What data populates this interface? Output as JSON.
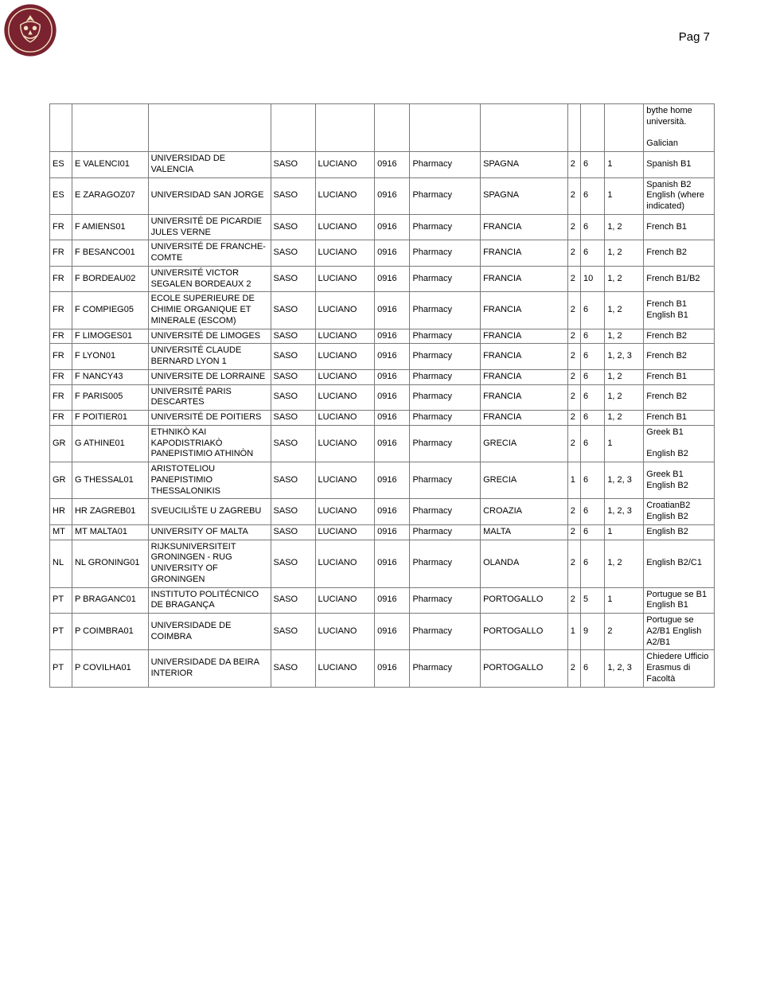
{
  "pageLabel": "Pag 7",
  "spacerNote": "bythe home università.\n\nGalician",
  "columns": [
    "c0",
    "c1",
    "c2",
    "c3",
    "c4",
    "c5",
    "c6",
    "c7",
    "c8",
    "c9",
    "c10",
    "c11"
  ],
  "rows": [
    [
      "ES",
      "E VALENCI01",
      "UNIVERSIDAD DE VALENCIA",
      "SASO",
      "LUCIANO",
      "0916",
      "Pharmacy",
      "SPAGNA",
      "2",
      "6",
      "1",
      "Spanish B1"
    ],
    [
      "ES",
      "E ZARAGOZ07",
      "UNIVERSIDAD SAN JORGE",
      "SASO",
      "LUCIANO",
      "0916",
      "Pharmacy",
      "SPAGNA",
      "2",
      "6",
      "1",
      "Spanish B2 English (where indicated)"
    ],
    [
      "FR",
      "F AMIENS01",
      "UNIVERSITÉ DE PICARDIE JULES VERNE",
      "SASO",
      "LUCIANO",
      "0916",
      "Pharmacy",
      "FRANCIA",
      "2",
      "6",
      "1, 2",
      "French B1"
    ],
    [
      "FR",
      "F BESANCO01",
      "UNIVERSITÉ DE FRANCHE-COMTE",
      "SASO",
      "LUCIANO",
      "0916",
      "Pharmacy",
      "FRANCIA",
      "2",
      "6",
      "1, 2",
      "French B2"
    ],
    [
      "FR",
      "F BORDEAU02",
      "UNIVERSITÉ VICTOR SEGALEN BORDEAUX 2",
      "SASO",
      "LUCIANO",
      "0916",
      "Pharmacy",
      "FRANCIA",
      "2",
      "10",
      "1, 2",
      "French B1/B2"
    ],
    [
      "FR",
      "F COMPIEG05",
      "ECOLE SUPERIEURE DE CHIMIE ORGANIQUE ET MINERALE (ESCOM)",
      "SASO",
      "LUCIANO",
      "0916",
      "Pharmacy",
      "FRANCIA",
      "2",
      "6",
      "1, 2",
      "French B1 English B1"
    ],
    [
      "FR",
      "F LIMOGES01",
      "UNIVERSITÉ DE LIMOGES",
      "SASO",
      "LUCIANO",
      "0916",
      "Pharmacy",
      "FRANCIA",
      "2",
      "6",
      "1, 2",
      "French B2"
    ],
    [
      "FR",
      "F LYON01",
      "UNIVERSITÉ CLAUDE BERNARD LYON 1",
      "SASO",
      "LUCIANO",
      "0916",
      "Pharmacy",
      "FRANCIA",
      "2",
      "6",
      "1, 2, 3",
      "French B2"
    ],
    [
      "FR",
      "F NANCY43",
      "UNIVERSITE DE LORRAINE",
      "SASO",
      "LUCIANO",
      "0916",
      "Pharmacy",
      "FRANCIA",
      "2",
      "6",
      "1, 2",
      "French B1"
    ],
    [
      "FR",
      "F PARIS005",
      "UNIVERSITÉ PARIS DESCARTES",
      "SASO",
      "LUCIANO",
      "0916",
      "Pharmacy",
      "FRANCIA",
      "2",
      "6",
      "1, 2",
      "French B2"
    ],
    [
      "FR",
      "F POITIER01",
      "UNIVERSITÉ DE POITIERS",
      "SASO",
      "LUCIANO",
      "0916",
      "Pharmacy",
      "FRANCIA",
      "2",
      "6",
      "1, 2",
      "French B1"
    ],
    [
      "GR",
      "G ATHINE01",
      "ETHNIKÒ KAI KAPODISTRIAKÒ PANEPISTIMIO ATHINÒN",
      "SASO",
      "LUCIANO",
      "0916",
      "Pharmacy",
      "GRECIA",
      "2",
      "6",
      "1",
      "Greek B1\n\nEnglish B2"
    ],
    [
      "GR",
      "G THESSAL01",
      "ARISTOTELIOU PANEPISTIMIO THESSALONIKIS",
      "SASO",
      "LUCIANO",
      "0916",
      "Pharmacy",
      "GRECIA",
      "1",
      "6",
      "1, 2, 3",
      "Greek B1 English B2"
    ],
    [
      "HR",
      "HR ZAGREB01",
      "SVEUCILIŠTE U ZAGREBU",
      "SASO",
      "LUCIANO",
      "0916",
      "Pharmacy",
      "CROAZIA",
      "2",
      "6",
      "1, 2, 3",
      "CroatianB2 English B2"
    ],
    [
      "MT",
      "MT MALTA01",
      "UNIVERSITY OF MALTA",
      "SASO",
      "LUCIANO",
      "0916",
      "Pharmacy",
      "MALTA",
      "2",
      "6",
      "1",
      "English B2"
    ],
    [
      "NL",
      "NL GRONING01",
      "RIJKSUNIVERSITEIT GRONINGEN - RUG UNIVERSITY OF GRONINGEN",
      "SASO",
      "LUCIANO",
      "0916",
      "Pharmacy",
      "OLANDA",
      "2",
      "6",
      "1, 2",
      "English B2/C1"
    ],
    [
      "PT",
      "P BRAGANC01",
      "INSTITUTO POLITÉCNICO DE BRAGANÇA",
      "SASO",
      "LUCIANO",
      "0916",
      "Pharmacy",
      "PORTOGALLO",
      "2",
      "5",
      "1",
      "Portugue se B1 English B1"
    ],
    [
      "PT",
      "P COIMBRA01",
      "UNIVERSIDADE DE COIMBRA",
      "SASO",
      "LUCIANO",
      "0916",
      "Pharmacy",
      "PORTOGALLO",
      "1",
      "9",
      "2",
      "Portugue se  A2/B1 English A2/B1"
    ],
    [
      "PT",
      "P COVILHA01",
      "UNIVERSIDADE DA BEIRA INTERIOR",
      "SASO",
      "LUCIANO",
      "0916",
      "Pharmacy",
      "PORTOGALLO",
      "2",
      "6",
      "1, 2, 3",
      "Chiedere Ufficio Erasmus di Facoltà"
    ]
  ],
  "colors": {
    "border": "#7a7a7a",
    "logo_bg": "#7a2230",
    "logo_fg": "#f4e3c0",
    "text": "#000000",
    "page_bg": "#ffffff"
  }
}
